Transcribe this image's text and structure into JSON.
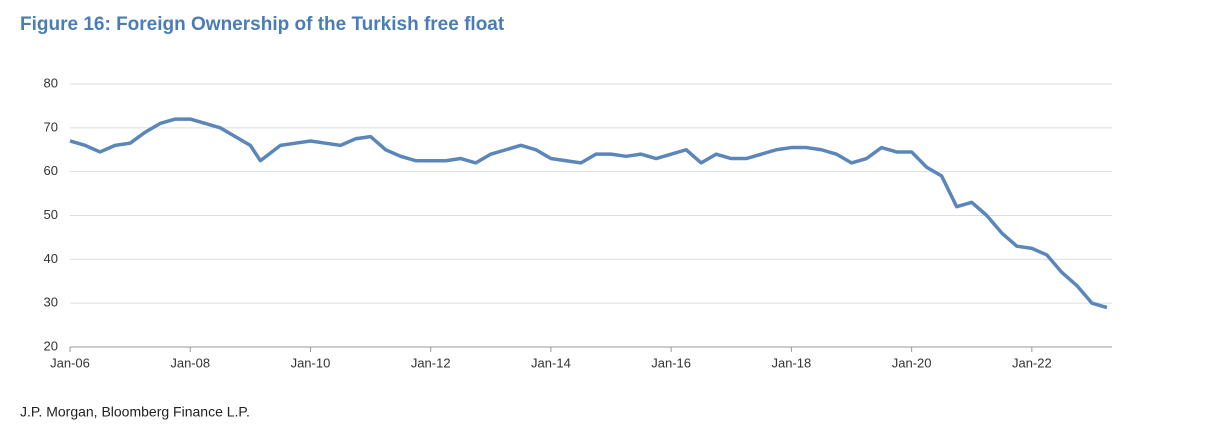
{
  "chart_data": {
    "type": "line",
    "title": "Figure 16: Foreign Ownership of the Turkish free float",
    "source": "J.P. Morgan, Bloomberg Finance L.P.",
    "x": [
      "2006-01",
      "2006-04",
      "2006-07",
      "2006-10",
      "2007-01",
      "2007-04",
      "2007-07",
      "2007-10",
      "2008-01",
      "2008-04",
      "2008-07",
      "2008-10",
      "2009-01",
      "2009-03",
      "2009-07",
      "2009-10",
      "2010-01",
      "2010-04",
      "2010-07",
      "2010-10",
      "2011-01",
      "2011-04",
      "2011-07",
      "2011-10",
      "2012-01",
      "2012-04",
      "2012-07",
      "2012-10",
      "2013-01",
      "2013-04",
      "2013-07",
      "2013-10",
      "2014-01",
      "2014-04",
      "2014-07",
      "2014-10",
      "2015-01",
      "2015-04",
      "2015-07",
      "2015-10",
      "2016-01",
      "2016-04",
      "2016-07",
      "2016-10",
      "2017-01",
      "2017-04",
      "2017-07",
      "2017-10",
      "2018-01",
      "2018-04",
      "2018-07",
      "2018-10",
      "2019-01",
      "2019-04",
      "2019-07",
      "2019-10",
      "2020-01",
      "2020-04",
      "2020-07",
      "2020-10",
      "2021-01",
      "2021-04",
      "2021-07",
      "2021-10",
      "2022-01",
      "2022-04",
      "2022-07",
      "2022-10",
      "2023-01",
      "2023-04"
    ],
    "series": [
      {
        "color": "#5b86ba",
        "values": [
          67,
          66,
          64.5,
          66,
          66.5,
          69,
          71,
          72,
          72,
          71,
          70,
          68,
          66,
          62.5,
          66,
          66.5,
          67,
          66.5,
          66,
          67.5,
          68,
          65,
          63.5,
          62.5,
          62.5,
          62.5,
          63,
          62,
          64,
          65,
          66,
          65,
          63,
          62.5,
          62,
          64,
          64,
          63.5,
          64,
          63,
          64,
          65,
          62,
          64,
          63,
          63,
          64,
          65,
          65.5,
          65.5,
          65,
          64,
          62,
          63,
          65.5,
          64.5,
          64.5,
          61,
          59,
          52,
          53,
          50,
          46,
          43,
          42.5,
          41,
          37,
          34,
          30,
          29
        ]
      }
    ],
    "xlim": [
      "2006-01",
      "2023-05"
    ],
    "xticks": [
      {
        "value": "2006-01",
        "label": "Jan-06"
      },
      {
        "value": "2008-01",
        "label": "Jan-08"
      },
      {
        "value": "2010-01",
        "label": "Jan-10"
      },
      {
        "value": "2012-01",
        "label": "Jan-12"
      },
      {
        "value": "2014-01",
        "label": "Jan-14"
      },
      {
        "value": "2016-01",
        "label": "Jan-16"
      },
      {
        "value": "2018-01",
        "label": "Jan-18"
      },
      {
        "value": "2020-01",
        "label": "Jan-20"
      },
      {
        "value": "2022-01",
        "label": "Jan-22"
      }
    ],
    "ylim": [
      20,
      80
    ],
    "yticks": [
      20,
      30,
      40,
      50,
      60,
      70,
      80
    ],
    "grid": true
  }
}
